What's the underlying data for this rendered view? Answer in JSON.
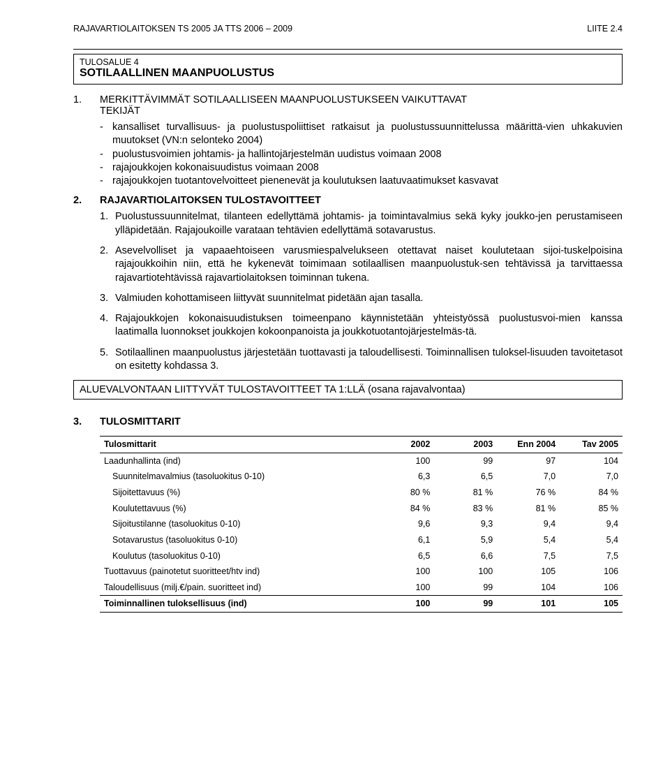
{
  "header": {
    "left": "RAJAVARTIOLAITOKSEN TS 2005 JA TTS 2006 – 2009",
    "right": "LIITE 2.4"
  },
  "tulosalue_box": {
    "line1": "TULOSALUE 4",
    "line2": "SOTILAALLINEN MAANPUOLUSTUS"
  },
  "section1": {
    "num": "1.",
    "title_line1": "MERKITTÄVIMMÄT SOTILAALLISEEN MAANPUOLUSTUKSEEN VAIKUTTAVAT",
    "title_line2": "TEKIJÄT",
    "bullets": [
      "kansalliset turvallisuus- ja puolustuspoliittiset ratkaisut ja puolustussuunnittelussa määrittä-vien uhkakuvien muutokset (VN:n selonteko 2004)",
      "puolustusvoimien johtamis- ja hallintojärjestelmän uudistus voimaan 2008",
      "rajajoukkojen kokonaisuudistus voimaan 2008",
      "rajajoukkojen tuotantovelvoitteet pienenevät ja koulutuksen laatuvaatimukset kasvavat"
    ]
  },
  "section2": {
    "num": "2.",
    "title": "RAJAVARTIOLAITOKSEN TULOSTAVOITTEET",
    "items": [
      {
        "n": "1.",
        "text": "Puolustussuunnitelmat, tilanteen edellyttämä johtamis- ja toimintavalmius sekä kyky joukko-jen perustamiseen ylläpidetään. Rajajoukoille varataan tehtävien edellyttämä sotavarustus."
      },
      {
        "n": "2.",
        "text": "Asevelvolliset ja vapaaehtoiseen varusmiespalvelukseen otettavat naiset koulutetaan sijoi-tuskelpoisina rajajoukkoihin niin, että he kykenevät toimimaan sotilaallisen maanpuolustuk-sen tehtävissä ja tarvittaessa rajavartiotehtävissä rajavartiolaitoksen toiminnan tukena."
      },
      {
        "n": "3.",
        "text": "Valmiuden kohottamiseen liittyvät suunnitelmat pidetään ajan tasalla."
      },
      {
        "n": "4.",
        "text": "Rajajoukkojen kokonaisuudistuksen toimeenpano käynnistetään yhteistyössä puolustusvoi-mien kanssa laatimalla luonnokset joukkojen kokoonpanoista ja joukkotuotantojärjestelmäs-tä."
      },
      {
        "n": "5.",
        "text": "Sotilaallinen maanpuolustus järjestetään tuottavasti ja taloudellisesti. Toiminnallisen tuloksel-lisuuden tavoitetasot on esitetty kohdassa 3."
      }
    ]
  },
  "aluevalvonta_box": "ALUEVALVONTAAN LIITTYVÄT TULOSTAVOITTEET TA 1:LLÄ (osana rajavalvontaa)",
  "section3": {
    "num": "3.",
    "title": "TULOSMITTARIT",
    "table": {
      "columns": [
        "Tulosmittarit",
        "2002",
        "2003",
        "Enn 2004",
        "Tav 2005"
      ],
      "rows": [
        {
          "label": "Laadunhallinta (ind)",
          "indent": 0,
          "v": [
            "100",
            "99",
            "97",
            "104"
          ]
        },
        {
          "label": "Suunnitelmavalmius (tasoluokitus 0-10)",
          "indent": 1,
          "v": [
            "6,3",
            "6,5",
            "7,0",
            "7,0"
          ]
        },
        {
          "label": "Sijoitettavuus (%)",
          "indent": 1,
          "v": [
            "80 %",
            "81 %",
            "76 %",
            "84 %"
          ]
        },
        {
          "label": "Koulutettavuus (%)",
          "indent": 1,
          "v": [
            "84 %",
            "83 %",
            "81 %",
            "85 %"
          ]
        },
        {
          "label": "Sijoitustilanne (tasoluokitus 0-10)",
          "indent": 1,
          "v": [
            "9,6",
            "9,3",
            "9,4",
            "9,4"
          ]
        },
        {
          "label": "Sotavarustus (tasoluokitus 0-10)",
          "indent": 1,
          "v": [
            "6,1",
            "5,9",
            "5,4",
            "5,4"
          ]
        },
        {
          "label": "Koulutus (tasoluokitus 0-10)",
          "indent": 1,
          "v": [
            "6,5",
            "6,6",
            "7,5",
            "7,5"
          ]
        },
        {
          "label": "Tuottavuus (painotetut suoritteet/htv ind)",
          "indent": 0,
          "v": [
            "100",
            "100",
            "105",
            "106"
          ]
        },
        {
          "label": "Taloudellisuus (milj.€/pain. suoritteet ind)",
          "indent": 0,
          "v": [
            "100",
            "99",
            "104",
            "106"
          ]
        }
      ],
      "bold_row": {
        "label": "Toiminnallinen tuloksellisuus (ind)",
        "v": [
          "100",
          "99",
          "101",
          "105"
        ]
      }
    }
  }
}
